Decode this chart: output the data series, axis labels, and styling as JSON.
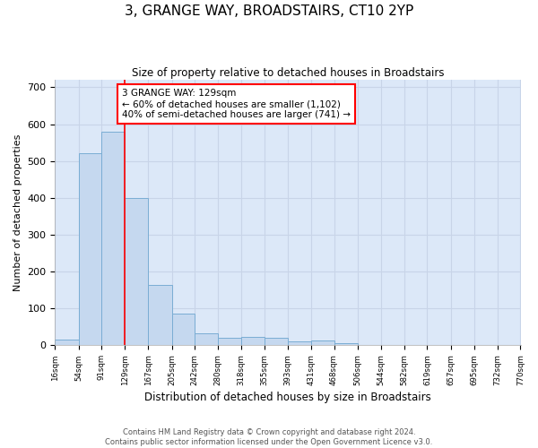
{
  "title": "3, GRANGE WAY, BROADSTAIRS, CT10 2YP",
  "subtitle": "Size of property relative to detached houses in Broadstairs",
  "xlabel": "Distribution of detached houses by size in Broadstairs",
  "ylabel": "Number of detached properties",
  "bar_values": [
    15,
    520,
    580,
    400,
    163,
    87,
    33,
    20,
    23,
    20,
    12,
    13,
    5,
    0,
    0,
    0,
    0,
    0,
    0
  ],
  "bin_edges": [
    16,
    54,
    91,
    129,
    167,
    205,
    242,
    280,
    318,
    355,
    393,
    431,
    468,
    506,
    544,
    582,
    619,
    657,
    695,
    733
  ],
  "x_labels": [
    "16sqm",
    "54sqm",
    "91sqm",
    "129sqm",
    "167sqm",
    "205sqm",
    "242sqm",
    "280sqm",
    "318sqm",
    "355sqm",
    "393sqm",
    "431sqm",
    "468sqm",
    "506sqm",
    "544sqm",
    "582sqm",
    "619sqm",
    "657sqm",
    "695sqm",
    "732sqm",
    "770sqm"
  ],
  "bar_color": "#c5d8ef",
  "bar_edge_color": "#7aadd4",
  "vline_x": 129,
  "vline_color": "red",
  "annotation_text": "3 GRANGE WAY: 129sqm\n← 60% of detached houses are smaller (1,102)\n40% of semi-detached houses are larger (741) →",
  "annotation_box_color": "white",
  "annotation_box_edge_color": "red",
  "ylim": [
    0,
    720
  ],
  "yticks": [
    0,
    100,
    200,
    300,
    400,
    500,
    600,
    700
  ],
  "footer_text": "Contains HM Land Registry data © Crown copyright and database right 2024.\nContains public sector information licensed under the Open Government Licence v3.0.",
  "grid_color": "#c8d4e8",
  "bg_color": "#dce8f8"
}
